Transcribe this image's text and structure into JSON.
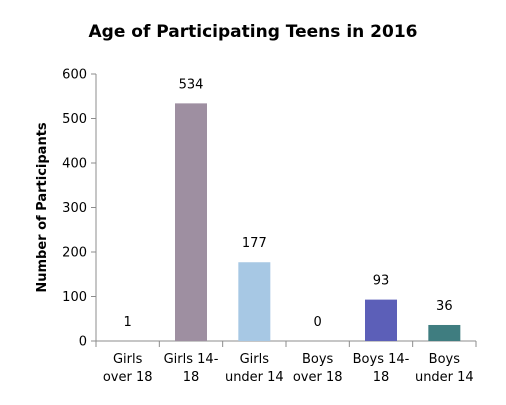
{
  "chart_data": {
    "type": "bar",
    "title": "Age of Participating  Teens in 2016",
    "xlabel": "",
    "ylabel": "Number of Participants",
    "ylim": [
      0,
      600
    ],
    "yticks": [
      0,
      100,
      200,
      300,
      400,
      500,
      600
    ],
    "grid": false,
    "legend": "none",
    "categories": [
      [
        "Girls",
        "over 18"
      ],
      [
        "Girls 14-",
        "18"
      ],
      [
        "Girls",
        "under 14"
      ],
      [
        "Boys",
        "over 18"
      ],
      [
        "Boys 14-",
        "18"
      ],
      [
        "Boys",
        "under 14"
      ]
    ],
    "values": [
      1,
      534,
      177,
      0,
      93,
      36
    ],
    "data_labels": [
      "1",
      "534",
      "177",
      "0",
      "93",
      "36"
    ],
    "colors": [
      "#9aa3c9",
      "#9e8fa1",
      "#a7c8e4",
      "#7b7fc4",
      "#5c5fb8",
      "#3f7d80"
    ]
  }
}
